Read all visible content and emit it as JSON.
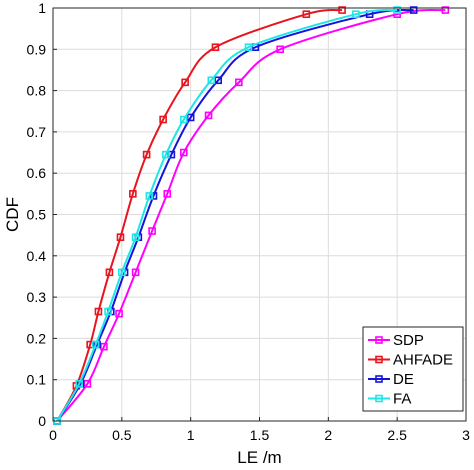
{
  "chart_data": {
    "type": "line",
    "title": "",
    "xlabel": "LE /m",
    "ylabel": "CDF",
    "xlim": [
      0,
      3
    ],
    "ylim": [
      0,
      1
    ],
    "xticks": [
      "0",
      "0.5",
      "1",
      "1.5",
      "2",
      "2.5",
      "3"
    ],
    "yticks": [
      "0",
      "0.1",
      "0.2",
      "0.3",
      "0.4",
      "0.5",
      "0.6",
      "0.7",
      "0.8",
      "0.9",
      "1"
    ],
    "grid": true,
    "legend_position": "bottom-right",
    "series": [
      {
        "name": "SDP",
        "color": "#ff00ff",
        "marker": "square",
        "x": [
          0.03,
          0.25,
          0.37,
          0.48,
          0.6,
          0.72,
          0.83,
          0.95,
          1.13,
          1.35,
          1.65,
          2.5,
          2.85
        ],
        "y": [
          0.0,
          0.09,
          0.18,
          0.26,
          0.36,
          0.46,
          0.55,
          0.65,
          0.74,
          0.82,
          0.9,
          0.985,
          0.995
        ]
      },
      {
        "name": "AHFADE",
        "color": "#e8141e",
        "marker": "square",
        "x": [
          0.03,
          0.17,
          0.27,
          0.33,
          0.41,
          0.49,
          0.58,
          0.68,
          0.8,
          0.96,
          1.18,
          1.84,
          2.1
        ],
        "y": [
          0.0,
          0.085,
          0.185,
          0.265,
          0.36,
          0.445,
          0.55,
          0.645,
          0.73,
          0.82,
          0.905,
          0.985,
          0.995
        ]
      },
      {
        "name": "DE",
        "color": "#1414dc",
        "marker": "square",
        "x": [
          0.03,
          0.2,
          0.32,
          0.42,
          0.52,
          0.62,
          0.73,
          0.86,
          1.0,
          1.2,
          1.47,
          2.3,
          2.62
        ],
        "y": [
          0.0,
          0.09,
          0.185,
          0.265,
          0.36,
          0.445,
          0.545,
          0.645,
          0.735,
          0.825,
          0.905,
          0.985,
          0.995
        ]
      },
      {
        "name": "FA",
        "color": "#1ee6e6",
        "marker": "square",
        "x": [
          0.03,
          0.19,
          0.31,
          0.4,
          0.5,
          0.6,
          0.7,
          0.82,
          0.95,
          1.15,
          1.42,
          2.2,
          2.5
        ],
        "y": [
          0.0,
          0.09,
          0.185,
          0.265,
          0.36,
          0.445,
          0.545,
          0.645,
          0.73,
          0.825,
          0.905,
          0.985,
          0.995
        ]
      }
    ]
  }
}
